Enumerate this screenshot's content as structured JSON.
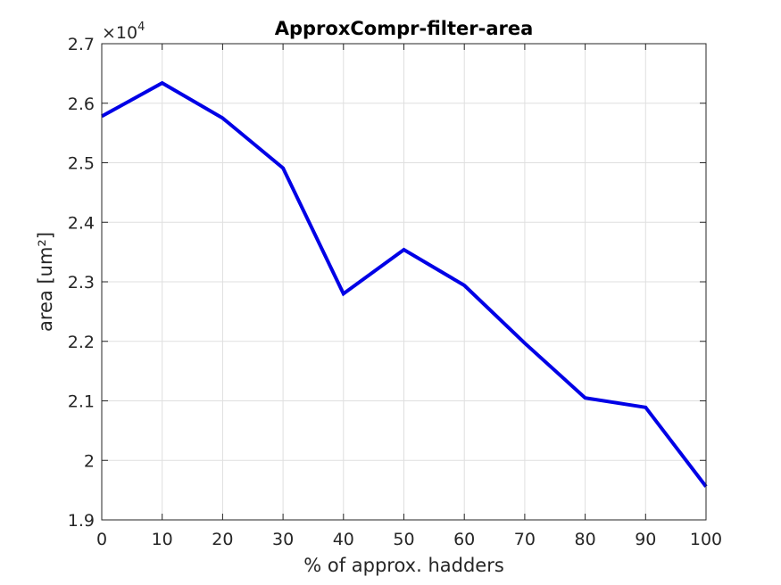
{
  "chart_data": {
    "type": "line",
    "title": "ApproxCompr-filter-area",
    "xlabel": "% of approx. hadders",
    "ylabel": "area [um²]",
    "y_exponent_base": "×10",
    "y_exponent_power": "4",
    "xlim": [
      0,
      100
    ],
    "ylim": [
      1.9,
      2.7
    ],
    "x_ticks": [
      0,
      10,
      20,
      30,
      40,
      50,
      60,
      70,
      80,
      90,
      100
    ],
    "x_tick_labels": [
      "0",
      "10",
      "20",
      "30",
      "40",
      "50",
      "60",
      "70",
      "80",
      "90",
      "100"
    ],
    "y_ticks": [
      1.9,
      2.0,
      2.1,
      2.2,
      2.3,
      2.4,
      2.5,
      2.6,
      2.7
    ],
    "y_tick_labels": [
      "1.9",
      "2",
      "2.1",
      "2.2",
      "2.3",
      "2.4",
      "2.5",
      "2.6",
      "2.7"
    ],
    "grid": true,
    "series": [
      {
        "x": [
          0,
          10,
          20,
          30,
          40,
          50,
          60,
          70,
          80,
          90,
          100
        ],
        "y": [
          2.578,
          2.634,
          2.575,
          2.491,
          2.28,
          2.354,
          2.294,
          2.197,
          2.105,
          2.089,
          1.956
        ],
        "color": "#0000e6"
      }
    ]
  }
}
